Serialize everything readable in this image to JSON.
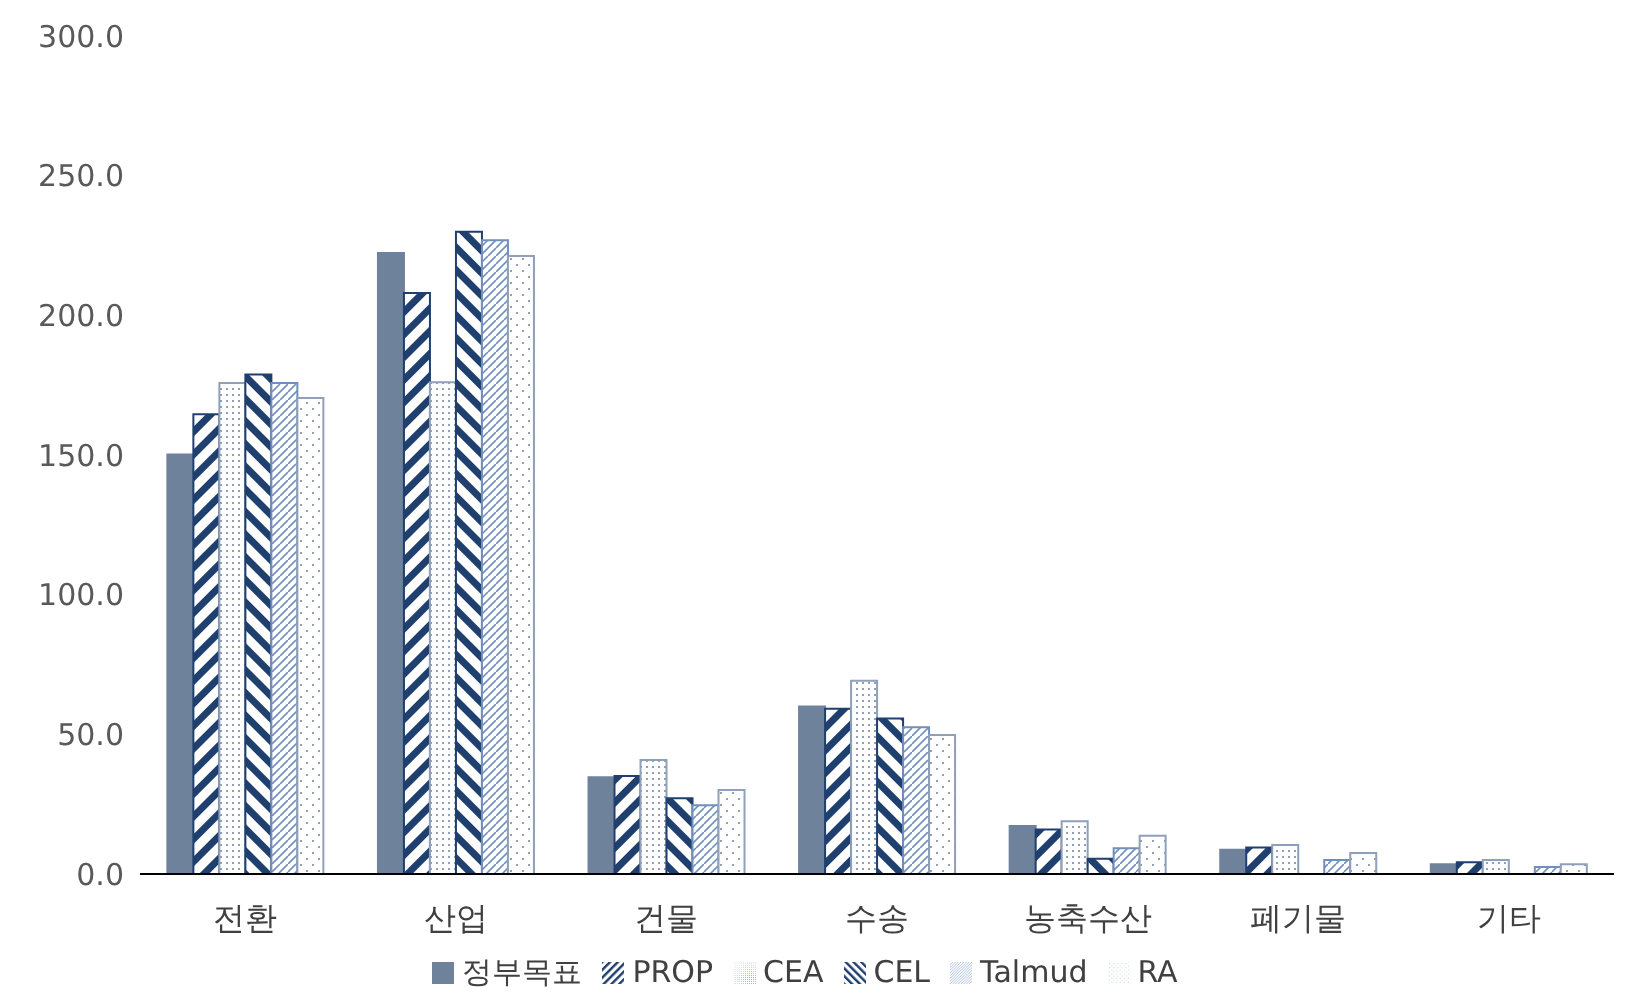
{
  "chart_data": {
    "type": "bar",
    "categories": [
      "전환",
      "산업",
      "건물",
      "수송",
      "농축수산",
      "폐기물",
      "기타"
    ],
    "series": [
      {
        "name": "정부목표",
        "color": "#6f829c",
        "values": [
          150.2,
          222.3,
          34.6,
          60.0,
          17.2,
          8.7,
          3.5
        ]
      },
      {
        "name": "PROP",
        "color": "#1f3f6e",
        "values": [
          164.6,
          208.0,
          35.1,
          59.2,
          15.9,
          9.5,
          4.2
        ]
      },
      {
        "name": "CEA",
        "color": "#8fa0b8",
        "values": [
          175.8,
          176.0,
          40.8,
          69.2,
          18.9,
          10.4,
          5.0
        ]
      },
      {
        "name": "CEL",
        "color": "#1f3f6e",
        "values": [
          178.8,
          229.9,
          27.1,
          55.7,
          5.5,
          null,
          null
        ]
      },
      {
        "name": "Talmud",
        "color": "#6f8fbf",
        "values": [
          175.8,
          226.9,
          24.6,
          52.5,
          9.2,
          5.0,
          2.5
        ]
      },
      {
        "name": "RA",
        "color": "#8fa0b8",
        "values": [
          170.4,
          221.2,
          30.1,
          49.8,
          13.7,
          7.5,
          3.5
        ]
      }
    ],
    "ylim": [
      0,
      300
    ],
    "yticks": [
      {
        "value": 0,
        "label": "0.0"
      },
      {
        "value": 50,
        "label": "50.0"
      },
      {
        "value": 100,
        "label": "100.0"
      },
      {
        "value": 150,
        "label": "150.0"
      },
      {
        "value": 200,
        "label": "200.0"
      },
      {
        "value": 250,
        "label": "250.0"
      },
      {
        "value": 300,
        "label": "300.0"
      }
    ],
    "grid": false,
    "legend": "bottom"
  }
}
